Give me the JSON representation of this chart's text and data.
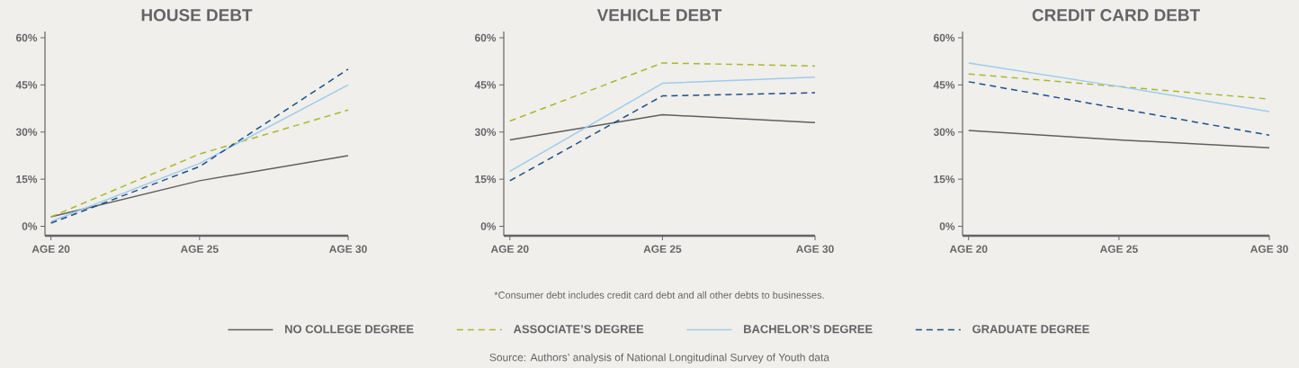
{
  "chart_data": [
    {
      "type": "line",
      "title": "HOUSE DEBT",
      "categories": [
        "AGE 20",
        "AGE 25",
        "AGE 30"
      ],
      "ylim": [
        -3,
        62
      ],
      "yticks": [
        {
          "value": 0,
          "label": "0%"
        },
        {
          "value": 15,
          "label": "15%"
        },
        {
          "value": 30,
          "label": "30%"
        },
        {
          "value": 45,
          "label": "45%"
        },
        {
          "value": 60,
          "label": "60%"
        }
      ],
      "grid": false,
      "series": [
        {
          "color": "#5f5f61",
          "line_style": "solid",
          "values": [
            3,
            14.5,
            22.5
          ]
        },
        {
          "color": "#a9b82f",
          "line_style": "dashed",
          "values": [
            3,
            23,
            37
          ]
        },
        {
          "color": "#9ecbec",
          "line_style": "solid",
          "values": [
            1.5,
            20,
            45
          ]
        },
        {
          "color": "#1f4e86",
          "line_style": "dashed",
          "values": [
            1,
            19,
            50
          ]
        }
      ]
    },
    {
      "type": "line",
      "title": "VEHICLE DEBT",
      "categories": [
        "AGE 20",
        "AGE 25",
        "AGE 30"
      ],
      "ylim": [
        -3,
        62
      ],
      "yticks": [
        {
          "value": 0,
          "label": "0%"
        },
        {
          "value": 15,
          "label": "15%"
        },
        {
          "value": 30,
          "label": "30%"
        },
        {
          "value": 45,
          "label": "45%"
        },
        {
          "value": 60,
          "label": "60%"
        }
      ],
      "grid": false,
      "legend": "bottom",
      "annotations": [
        "*Consumer debt includes credit card debt and all other debts to businesses.",
        "Source: Authors’ analysis of National Longitudinal Survey of Youth data"
      ],
      "series": [
        {
          "name": "NO COLLEGE DEGREE",
          "color": "#5f5f61",
          "line_style": "solid",
          "values": [
            27.5,
            35.5,
            33
          ]
        },
        {
          "name": "ASSOCIATE’S DEGREE",
          "color": "#a9b82f",
          "line_style": "dashed",
          "values": [
            33.5,
            52,
            51
          ]
        },
        {
          "name": "BACHELOR’S DEGREE",
          "color": "#9ecbec",
          "line_style": "solid",
          "values": [
            17.5,
            45.5,
            47.5
          ]
        },
        {
          "name": "GRADUATE DEGREE",
          "color": "#1f4e86",
          "line_style": "dashed",
          "values": [
            14.5,
            41.5,
            42.5
          ]
        }
      ]
    },
    {
      "type": "line",
      "title": "CREDIT CARD DEBT",
      "categories": [
        "AGE 20",
        "AGE 25",
        "AGE 30"
      ],
      "ylim": [
        -3,
        62
      ],
      "yticks": [
        {
          "value": 0,
          "label": "0%"
        },
        {
          "value": 15,
          "label": "15%"
        },
        {
          "value": 30,
          "label": "30%"
        },
        {
          "value": 45,
          "label": "45%"
        },
        {
          "value": 60,
          "label": "60%"
        }
      ],
      "grid": false,
      "series": [
        {
          "color": "#5f5f61",
          "line_style": "solid",
          "values": [
            30.5,
            27.5,
            25
          ]
        },
        {
          "color": "#a9b82f",
          "line_style": "dashed",
          "values": [
            48.5,
            44.5,
            40.5
          ]
        },
        {
          "color": "#9ecbec",
          "line_style": "solid",
          "values": [
            52,
            44.5,
            36.5
          ]
        },
        {
          "color": "#1f4e86",
          "line_style": "dashed",
          "values": [
            46,
            37.5,
            29
          ]
        }
      ]
    }
  ]
}
